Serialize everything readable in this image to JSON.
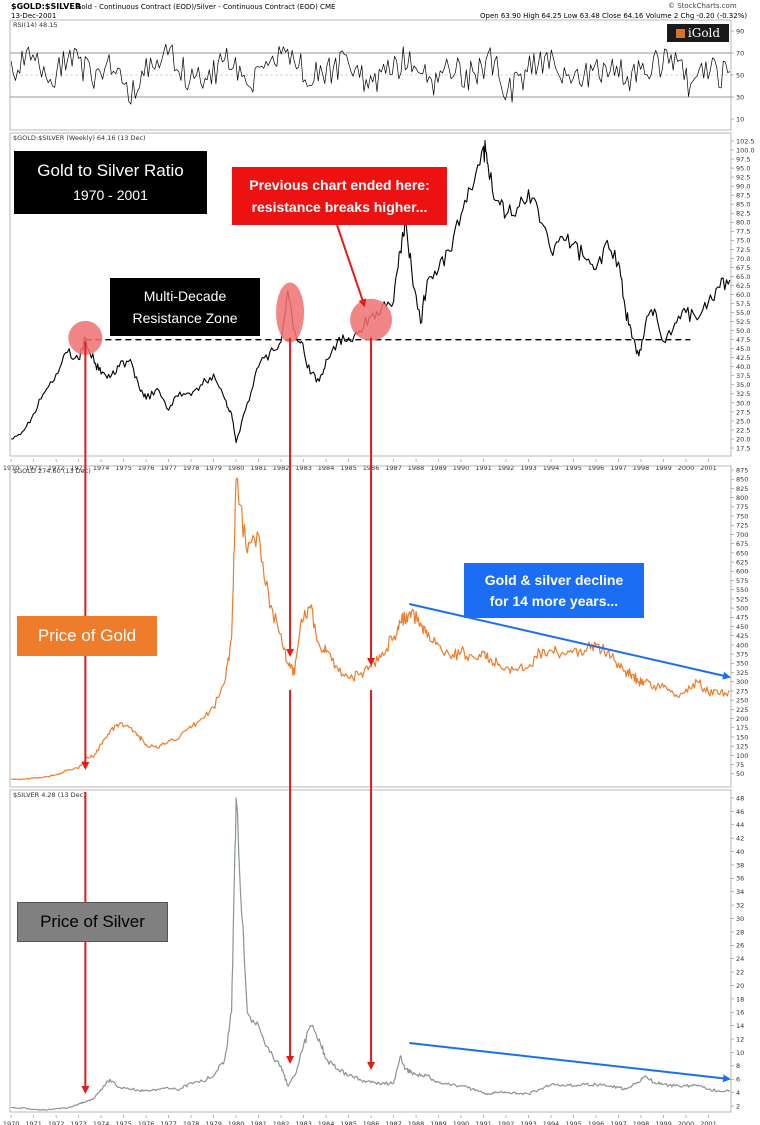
{
  "header": {
    "symbol": "$GOLD:$SILVER",
    "description": "Gold - Continuous Contract (EOD)/Silver - Continuous Contract (EOD) CME",
    "date": "13-Dec-2001",
    "quote": "Open 63.90  High 64.25  Low 63.48  Close 64.16  Volume 2  Chg -0.20 (-0.32%)",
    "credit": "© StockCharts.com",
    "brand": "iGold"
  },
  "colors": {
    "ratio": "#000000",
    "gold": "#ef7c2a",
    "silver": "#8a9399",
    "arrow_red": "#e31b1b",
    "arrow_blue": "#1b6ef3",
    "circle": "#f07070"
  },
  "annotations": {
    "ratio_title_line1": "Gold to Silver Ratio",
    "ratio_title_line2": "1970 - 2001",
    "previous_line1": "Previous chart ended here:",
    "previous_line2": "resistance breaks higher...",
    "resistance_line1": "Multi-Decade",
    "resistance_line2": "Resistance Zone",
    "gold_label": "Price of Gold",
    "decline_line1": "Gold & silver decline",
    "decline_line2": "for 14 more years...",
    "silver_label": "Price of Silver"
  },
  "chart_data": [
    {
      "type": "line",
      "panel": "rsi",
      "title": "RSI(14) 48.15",
      "ylim": [
        0,
        100
      ],
      "y_ticks": [
        10,
        30,
        50,
        70,
        90
      ],
      "reference_lines": [
        30,
        70
      ],
      "series": [
        {
          "values": [
            52,
            64,
            41,
            71,
            48,
            60,
            35,
            57,
            69,
            44,
            50,
            66,
            39,
            58,
            73,
            46,
            55,
            62,
            37,
            54,
            68,
            43,
            59,
            49,
            64,
            33,
            57,
            70,
            42,
            51,
            61,
            47,
            56,
            65,
            40,
            53,
            48
          ]
        }
      ]
    },
    {
      "type": "line",
      "panel": "ratio",
      "title": "$GOLD:$SILVER (Weekly) 64.16 (13 Dec)",
      "x_ticks": [
        "1970",
        "1971",
        "1972",
        "1973",
        "1974",
        "1975",
        "1976",
        "1977",
        "1978",
        "1979",
        "1980",
        "1981",
        "1982",
        "1983",
        "1984",
        "1985",
        "1986",
        "1987",
        "1988",
        "1989",
        "1990",
        "1991",
        "1992",
        "1993",
        "1994",
        "1995",
        "1996",
        "1997",
        "1998",
        "1999",
        "2000",
        "2001"
      ],
      "ylim": [
        17.5,
        102.5
      ],
      "y_ticks": [
        17.5,
        20.0,
        22.5,
        25.0,
        27.5,
        30.0,
        32.5,
        35.0,
        37.5,
        40.0,
        42.5,
        45.0,
        47.5,
        50.0,
        52.5,
        55.0,
        57.5,
        60.0,
        62.5,
        65.0,
        67.5,
        70.0,
        72.5,
        75.0,
        77.5,
        80.0,
        82.5,
        85.0,
        87.5,
        90.0,
        92.5,
        95.0,
        97.5,
        100.0,
        102.5
      ],
      "reference_lines": [
        47.5
      ],
      "x": [
        1970.0,
        1970.5,
        1971.0,
        1971.5,
        1972.0,
        1972.5,
        1973.0,
        1973.3,
        1973.7,
        1974.0,
        1974.4,
        1974.8,
        1975.3,
        1975.7,
        1976.0,
        1976.5,
        1977.0,
        1977.5,
        1978.0,
        1978.5,
        1979.0,
        1979.5,
        1979.8,
        1980.0,
        1980.5,
        1981.0,
        1981.5,
        1982.0,
        1982.3,
        1982.6,
        1982.9,
        1983.3,
        1983.7,
        1984.0,
        1984.5,
        1985.0,
        1985.5,
        1986.0,
        1986.5,
        1987.0,
        1987.3,
        1987.5,
        1987.8,
        1988.2,
        1988.5,
        1989.0,
        1989.5,
        1990.0,
        1990.5,
        1991.0,
        1991.2,
        1991.6,
        1992.0,
        1992.5,
        1993.0,
        1993.5,
        1994.0,
        1994.5,
        1995.0,
        1995.5,
        1996.0,
        1996.5,
        1997.0,
        1997.3,
        1997.6,
        1997.9,
        1998.2,
        1998.6,
        1999.0,
        1999.5,
        2000.0,
        2000.5,
        2001.0,
        2001.5,
        2001.95
      ],
      "y": [
        20,
        22,
        27,
        33,
        38,
        44,
        42,
        48,
        41,
        38,
        37,
        40,
        42,
        34,
        31,
        34,
        28,
        33,
        32,
        35,
        38,
        31,
        27,
        19,
        30,
        40,
        44,
        47,
        61,
        50,
        47,
        38,
        36,
        42,
        47,
        48,
        50,
        54,
        57,
        58,
        72,
        80,
        67,
        52,
        64,
        67,
        72,
        82,
        89,
        101,
        96,
        86,
        82,
        84,
        89,
        80,
        72,
        76,
        74,
        70,
        67,
        75,
        69,
        56,
        48,
        43,
        52,
        56,
        47,
        52,
        55,
        53,
        58,
        62,
        64
      ]
    },
    {
      "type": "line",
      "panel": "gold",
      "title": "$GOLD 274.60 (13 Dec)",
      "ylim": [
        25,
        875
      ],
      "y_ticks": [
        50,
        75,
        100,
        125,
        150,
        175,
        200,
        225,
        250,
        275,
        300,
        325,
        350,
        375,
        400,
        425,
        450,
        475,
        500,
        525,
        550,
        575,
        600,
        625,
        650,
        675,
        700,
        725,
        750,
        775,
        800,
        825,
        850,
        875
      ],
      "x": [
        1970.0,
        1970.5,
        1971.0,
        1971.5,
        1972.0,
        1972.5,
        1973.0,
        1973.3,
        1973.7,
        1974.0,
        1974.4,
        1974.8,
        1975.3,
        1975.7,
        1976.0,
        1976.5,
        1977.0,
        1977.5,
        1978.0,
        1978.5,
        1979.0,
        1979.5,
        1979.8,
        1980.0,
        1980.5,
        1981.0,
        1981.5,
        1982.0,
        1982.3,
        1982.6,
        1982.9,
        1983.3,
        1983.7,
        1984.0,
        1984.5,
        1985.0,
        1985.5,
        1986.0,
        1986.5,
        1987.0,
        1987.3,
        1987.5,
        1987.8,
        1988.2,
        1988.5,
        1989.0,
        1989.5,
        1990.0,
        1990.5,
        1991.0,
        1991.2,
        1991.6,
        1992.0,
        1992.5,
        1993.0,
        1993.5,
        1994.0,
        1994.5,
        1995.0,
        1995.5,
        1996.0,
        1996.5,
        1997.0,
        1997.3,
        1997.6,
        1997.9,
        1998.2,
        1998.6,
        1999.0,
        1999.5,
        2000.0,
        2000.5,
        2001.0,
        2001.5,
        2001.95
      ],
      "y": [
        35,
        36,
        38,
        42,
        47,
        60,
        65,
        90,
        100,
        130,
        165,
        185,
        175,
        150,
        130,
        120,
        140,
        150,
        175,
        200,
        230,
        300,
        420,
        850,
        650,
        700,
        500,
        430,
        350,
        320,
        470,
        500,
        400,
        380,
        340,
        310,
        320,
        340,
        380,
        420,
        460,
        470,
        490,
        460,
        420,
        400,
        370,
        380,
        370,
        380,
        360,
        355,
        340,
        330,
        340,
        380,
        385,
        380,
        385,
        385,
        400,
        380,
        350,
        330,
        320,
        300,
        300,
        290,
        285,
        260,
        280,
        300,
        270,
        265,
        275
      ]
    },
    {
      "type": "line",
      "panel": "silver",
      "title": "$SILVER 4.28 (13 Dec)",
      "ylim": [
        2,
        48
      ],
      "y_ticks": [
        2,
        4,
        6,
        8,
        10,
        12,
        14,
        16,
        18,
        20,
        22,
        24,
        26,
        28,
        30,
        32,
        34,
        36,
        38,
        40,
        42,
        44,
        46,
        48
      ],
      "x": [
        1970.0,
        1970.5,
        1971.0,
        1971.5,
        1972.0,
        1972.5,
        1973.0,
        1973.3,
        1973.7,
        1974.0,
        1974.4,
        1974.8,
        1975.3,
        1975.7,
        1976.0,
        1976.5,
        1977.0,
        1977.5,
        1978.0,
        1978.5,
        1979.0,
        1979.5,
        1979.8,
        1980.0,
        1980.5,
        1981.0,
        1981.5,
        1982.0,
        1982.3,
        1982.6,
        1982.9,
        1983.3,
        1983.7,
        1984.0,
        1984.5,
        1985.0,
        1985.5,
        1986.0,
        1986.5,
        1987.0,
        1987.3,
        1987.5,
        1987.8,
        1988.2,
        1988.5,
        1989.0,
        1989.5,
        1990.0,
        1990.5,
        1991.0,
        1991.2,
        1991.6,
        1992.0,
        1992.5,
        1993.0,
        1993.5,
        1994.0,
        1994.5,
        1995.0,
        1995.5,
        1996.0,
        1996.5,
        1997.0,
        1997.3,
        1997.6,
        1997.9,
        1998.2,
        1998.6,
        1999.0,
        1999.5,
        2000.0,
        2000.5,
        2001.0,
        2001.5,
        2001.95
      ],
      "y": [
        1.8,
        1.7,
        1.5,
        1.4,
        1.6,
        1.7,
        2.3,
        2.6,
        3.2,
        4.5,
        6.0,
        4.8,
        4.5,
        4.3,
        4.4,
        4.5,
        4.6,
        4.5,
        5.5,
        5.7,
        6.5,
        9.0,
        16.0,
        48.0,
        16.0,
        14.0,
        10.0,
        8.0,
        5.0,
        6.5,
        10.0,
        14.0,
        12.0,
        9.0,
        7.5,
        6.5,
        6.0,
        5.5,
        5.4,
        5.4,
        9.5,
        7.5,
        7.0,
        6.5,
        6.5,
        5.5,
        5.2,
        5.0,
        4.5,
        4.0,
        3.8,
        4.0,
        4.0,
        3.9,
        3.8,
        4.5,
        5.2,
        5.2,
        5.0,
        5.2,
        5.2,
        5.0,
        4.8,
        4.5,
        5.0,
        5.5,
        6.5,
        5.5,
        5.2,
        5.0,
        5.0,
        5.0,
        4.5,
        4.2,
        4.3
      ]
    }
  ]
}
